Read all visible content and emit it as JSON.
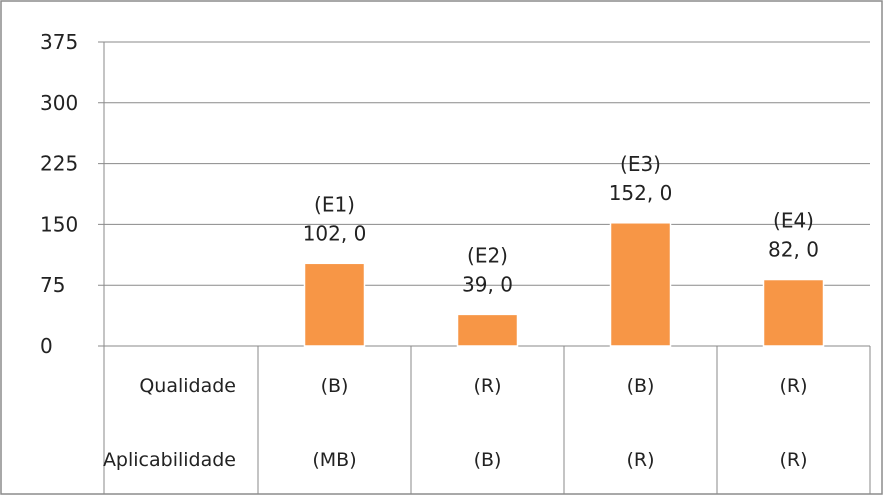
{
  "chart_data": {
    "type": "bar",
    "categories": [
      "E1",
      "E2",
      "E3",
      "E4"
    ],
    "values": [
      102.0,
      39.0,
      152.0,
      82.0
    ],
    "data_labels": [
      {
        "id": "(E1)",
        "value": "102, 0"
      },
      {
        "id": "(E2)",
        "value": "39, 0"
      },
      {
        "id": "(E3)",
        "value": "152, 0"
      },
      {
        "id": "(E4)",
        "value": "82, 0"
      }
    ],
    "yticks": [
      "0",
      "75",
      "150",
      "225",
      "300",
      "375"
    ],
    "ylim": [
      0,
      375
    ],
    "grid": true,
    "bar_color": "#F79646",
    "table": {
      "rows": [
        {
          "label": "Qualidade",
          "values": [
            "(B)",
            "(R)",
            "(B)",
            "(R)"
          ]
        },
        {
          "label": "Aplicabilidade",
          "values": [
            "(MB)",
            "(B)",
            "(R)",
            "(R)"
          ]
        }
      ]
    }
  }
}
